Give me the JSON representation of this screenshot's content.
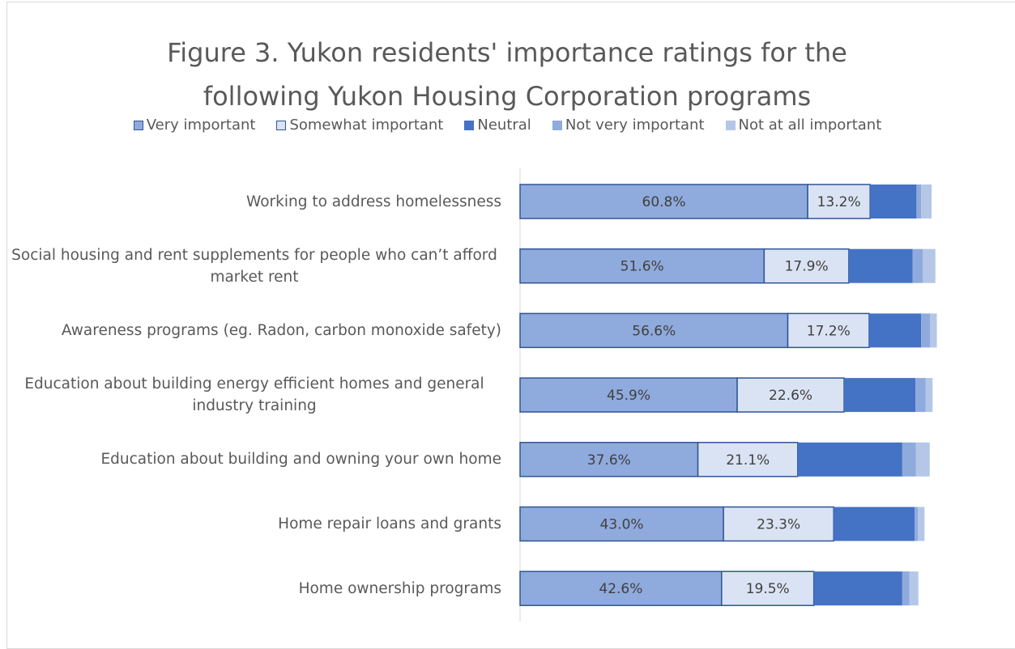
{
  "chart_data": {
    "type": "stacked-bar-horizontal",
    "title": "Figure 3. Yukon residents' importance ratings for the following Yukon Housing Corporation programs",
    "categories": [
      "Working to address homelessness",
      "Social housing and rent supplements for people who can’t afford market rent",
      "Awareness programs (eg. Radon, carbon monoxide safety)",
      "Education about building energy efficient homes and general industry training",
      "Education about building and owning your own home",
      "Home repair loans and grants",
      "Home ownership programs"
    ],
    "series": [
      {
        "name": "Very important",
        "color": "#8faadc",
        "border": "#2f5597",
        "values": [
          60.8,
          51.6,
          56.6,
          45.9,
          37.6,
          43.0,
          42.6
        ],
        "value_labels": [
          "60.8%",
          "51.6%",
          "56.6%",
          "45.9%",
          "37.6%",
          "43.0%",
          "42.6%"
        ]
      },
      {
        "name": "Somewhat important",
        "color": "#dae3f3",
        "border": "#2f5597",
        "values": [
          13.2,
          17.9,
          17.2,
          22.6,
          21.1,
          23.3,
          19.5
        ],
        "value_labels": [
          "13.2%",
          "17.9%",
          "17.2%",
          "22.6%",
          "21.1%",
          "23.3%",
          "19.5%"
        ]
      },
      {
        "name": "Neutral",
        "color": "#4472c4",
        "values": [
          9.8,
          13.5,
          11.0,
          15.1,
          22.1,
          17.1,
          18.7
        ]
      },
      {
        "name": "Not very important",
        "color": "#8faadc",
        "values": [
          1.0,
          2.1,
          1.9,
          2.1,
          2.9,
          0.7,
          1.5
        ]
      },
      {
        "name": "Not at all important",
        "color": "#b4c7e7",
        "values": [
          2.2,
          2.7,
          1.4,
          1.5,
          2.9,
          1.4,
          1.9
        ]
      }
    ]
  }
}
